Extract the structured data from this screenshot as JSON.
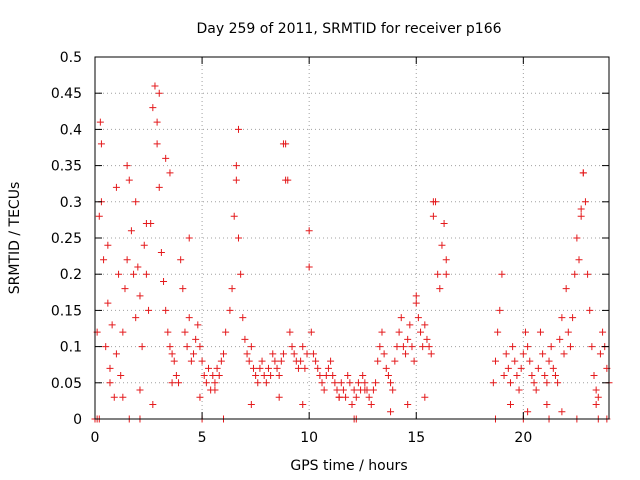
{
  "chart_data": {
    "type": "scatter",
    "title": "Day 259 of 2011, SRMTID for receiver p166",
    "xlabel": "GPS time / hours",
    "ylabel": "SRMTID / TECUs",
    "xlim": [
      0,
      24
    ],
    "ylim": [
      0,
      0.5
    ],
    "x_ticks": [
      0,
      5,
      10,
      15,
      20
    ],
    "x_tick_labels": [
      "0",
      "5",
      "10",
      "15",
      "20"
    ],
    "y_ticks": [
      0,
      0.05,
      0.1,
      0.15,
      0.2,
      0.25,
      0.3,
      0.35,
      0.4,
      0.45,
      0.5
    ],
    "y_tick_labels": [
      "0",
      "0.05",
      "0.1",
      "0.15",
      "0.2",
      "0.25",
      "0.3",
      "0.35",
      "0.4",
      "0.45",
      "0.5"
    ],
    "grid": true,
    "legend": "none",
    "marker": "plus",
    "color": "#e41a1c",
    "series": [
      {
        "x": [
          0.1,
          0.2,
          0.25,
          0.3,
          0.4,
          0.5,
          0.6,
          0.7,
          0.8,
          0.9,
          1.0,
          1.1,
          1.2,
          1.3,
          1.4,
          1.5,
          1.6,
          1.7,
          1.8,
          1.9,
          2.0,
          2.1,
          2.2,
          2.3,
          2.4,
          2.5,
          2.6,
          2.7,
          2.8,
          2.9,
          3.0,
          3.1,
          3.2,
          3.3,
          3.4,
          3.5,
          3.6,
          3.7,
          3.8,
          3.9,
          4.0,
          4.1,
          4.2,
          4.3,
          4.4,
          4.5,
          4.6,
          4.7,
          4.8,
          4.9,
          5.0,
          5.1,
          5.2,
          5.3,
          5.4,
          5.5,
          5.6,
          5.7,
          5.8,
          5.9,
          6.0,
          6.1,
          6.3,
          6.4,
          6.5,
          6.6,
          6.7,
          6.8,
          6.9,
          7.0,
          7.1,
          7.2,
          7.3,
          7.4,
          7.5,
          7.6,
          7.7,
          7.8,
          7.9,
          8.0,
          8.1,
          8.2,
          8.3,
          8.4,
          8.5,
          8.6,
          8.7,
          8.8,
          8.9,
          9.0,
          9.1,
          9.2,
          9.3,
          9.4,
          9.5,
          9.6,
          9.7,
          9.8,
          9.9,
          10.0,
          10.1,
          10.2,
          10.3,
          10.4,
          10.5,
          10.6,
          10.7,
          10.8,
          10.9,
          11.0,
          11.1,
          11.2,
          11.3,
          11.4,
          11.5,
          11.6,
          11.7,
          11.8,
          11.9,
          12.0,
          12.1,
          12.2,
          12.3,
          12.4,
          12.5,
          12.6,
          12.7,
          12.8,
          12.9,
          13.0,
          13.1,
          13.2,
          13.3,
          13.4,
          13.5,
          13.6,
          13.7,
          13.8,
          13.9,
          14.0,
          14.1,
          14.2,
          14.3,
          14.4,
          14.5,
          14.6,
          14.7,
          14.8,
          14.9,
          15.0,
          15.1,
          15.2,
          15.3,
          15.4,
          15.5,
          15.6,
          15.7,
          15.8,
          15.9,
          16.0,
          16.1,
          16.2,
          16.3,
          16.4,
          18.6,
          18.7,
          18.8,
          18.9,
          19.0,
          19.1,
          19.2,
          19.3,
          19.4,
          19.5,
          19.6,
          19.7,
          19.8,
          19.9,
          20.0,
          20.1,
          20.2,
          20.3,
          20.4,
          20.5,
          20.6,
          20.7,
          20.8,
          20.9,
          21.0,
          21.1,
          21.2,
          21.3,
          21.4,
          21.5,
          21.6,
          21.7,
          21.8,
          21.9,
          22.0,
          22.1,
          22.2,
          22.3,
          22.4,
          22.5,
          22.6,
          22.7,
          22.8,
          22.9,
          23.0,
          23.1,
          23.2,
          23.3,
          23.4,
          23.5,
          23.6,
          23.7,
          23.8,
          23.9,
          24.0,
          0.3,
          0.6,
          1.0,
          1.5,
          1.9,
          2.4,
          2.9,
          3.0,
          3.3,
          3.5,
          4.4,
          6.6,
          6.7,
          8.8,
          8.9,
          10.0,
          15.0,
          15.8,
          16.4,
          22.7,
          22.8,
          0.7,
          1.3,
          2.1,
          2.7,
          3.6,
          4.9,
          5.6,
          7.3,
          8.6,
          9.7,
          11.4,
          12.6,
          13.8,
          14.6,
          15.4,
          19.4,
          20.2,
          21.1,
          21.8,
          23.4,
          0.0,
          0.1,
          0.2,
          1.6,
          2.1,
          5.0,
          6.0,
          12.1,
          12.2,
          18.7,
          20.0,
          21.2,
          22.5,
          23.5,
          23.9
        ],
        "y": [
          0.12,
          0.28,
          0.41,
          0.38,
          0.22,
          0.1,
          0.16,
          0.05,
          0.13,
          0.03,
          0.09,
          0.2,
          0.06,
          0.12,
          0.18,
          0.22,
          0.33,
          0.26,
          0.2,
          0.14,
          0.21,
          0.17,
          0.1,
          0.24,
          0.2,
          0.15,
          0.27,
          0.43,
          0.46,
          0.38,
          0.32,
          0.23,
          0.19,
          0.15,
          0.12,
          0.1,
          0.09,
          0.08,
          0.06,
          0.05,
          0.22,
          0.18,
          0.12,
          0.1,
          0.14,
          0.08,
          0.09,
          0.11,
          0.13,
          0.1,
          0.08,
          0.06,
          0.05,
          0.07,
          0.04,
          0.06,
          0.05,
          0.07,
          0.06,
          0.08,
          0.09,
          0.12,
          0.15,
          0.18,
          0.28,
          0.35,
          0.25,
          0.2,
          0.14,
          0.11,
          0.09,
          0.08,
          0.1,
          0.07,
          0.06,
          0.05,
          0.07,
          0.08,
          0.06,
          0.05,
          0.07,
          0.06,
          0.09,
          0.08,
          0.07,
          0.06,
          0.08,
          0.09,
          0.38,
          0.33,
          0.12,
          0.1,
          0.09,
          0.08,
          0.07,
          0.08,
          0.1,
          0.07,
          0.09,
          0.21,
          0.12,
          0.09,
          0.08,
          0.07,
          0.06,
          0.05,
          0.04,
          0.06,
          0.07,
          0.08,
          0.06,
          0.05,
          0.04,
          0.03,
          0.05,
          0.04,
          0.03,
          0.06,
          0.05,
          0.02,
          0.04,
          0.03,
          0.05,
          0.04,
          0.06,
          0.05,
          0.04,
          0.03,
          0.02,
          0.04,
          0.05,
          0.08,
          0.1,
          0.12,
          0.09,
          0.07,
          0.06,
          0.05,
          0.04,
          0.08,
          0.1,
          0.12,
          0.14,
          0.1,
          0.09,
          0.11,
          0.13,
          0.1,
          0.08,
          0.17,
          0.14,
          0.12,
          0.1,
          0.13,
          0.11,
          0.1,
          0.09,
          0.28,
          0.3,
          0.2,
          0.18,
          0.24,
          0.27,
          0.22,
          0.05,
          0.08,
          0.12,
          0.15,
          0.2,
          0.06,
          0.09,
          0.07,
          0.05,
          0.1,
          0.08,
          0.06,
          0.04,
          0.07,
          0.09,
          0.12,
          0.1,
          0.08,
          0.06,
          0.05,
          0.04,
          0.07,
          0.12,
          0.09,
          0.06,
          0.05,
          0.08,
          0.1,
          0.07,
          0.06,
          0.05,
          0.11,
          0.14,
          0.09,
          0.18,
          0.12,
          0.1,
          0.14,
          0.2,
          0.25,
          0.22,
          0.28,
          0.34,
          0.3,
          0.2,
          0.15,
          0.1,
          0.06,
          0.04,
          0.03,
          0.09,
          0.12,
          0.1,
          0.07,
          0.05,
          0.3,
          0.24,
          0.32,
          0.35,
          0.3,
          0.27,
          0.41,
          0.45,
          0.36,
          0.34,
          0.25,
          0.33,
          0.4,
          0.38,
          0.33,
          0.26,
          0.16,
          0.3,
          0.2,
          0.29,
          0.34,
          0.07,
          0.03,
          0.04,
          0.02,
          0.05,
          0.03,
          0.04,
          0.02,
          0.03,
          0.02,
          0.03,
          0.04,
          0.01,
          0.02,
          0.03,
          0.02,
          0.01,
          0.02,
          0.01,
          0.02,
          0.0,
          0.0,
          0.0,
          0.0,
          0.0,
          0.0,
          0.0,
          0.0,
          0.0,
          0.0,
          0.0,
          0.0,
          0.0,
          0.0,
          0.0
        ]
      }
    ]
  }
}
